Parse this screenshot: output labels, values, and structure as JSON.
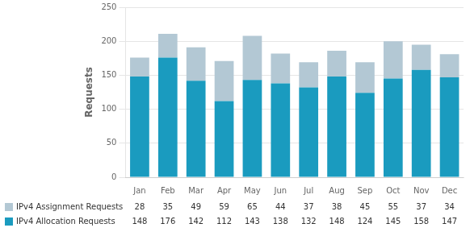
{
  "chart_data": {
    "type": "bar",
    "stacked": true,
    "ylabel": "Requests",
    "categories": [
      "Jan",
      "Feb",
      "Mar",
      "Apr",
      "May",
      "Jun",
      "Jul",
      "Aug",
      "Sep",
      "Oct",
      "Nov",
      "Dec"
    ],
    "series": [
      {
        "name": "IPv4 Allocation Requests",
        "color": "#1a9bbf",
        "values": [
          148,
          176,
          142,
          112,
          143,
          138,
          132,
          148,
          124,
          145,
          158,
          147
        ]
      },
      {
        "name": "IPv4 Assignment Requests",
        "color": "#b3c8d4",
        "values": [
          28,
          35,
          49,
          59,
          65,
          44,
          37,
          38,
          45,
          55,
          37,
          34
        ]
      }
    ],
    "ylim": [
      0,
      250
    ],
    "yticks": [
      0,
      50,
      100,
      150,
      200,
      250
    ],
    "grid": true,
    "legend": "bottom"
  }
}
